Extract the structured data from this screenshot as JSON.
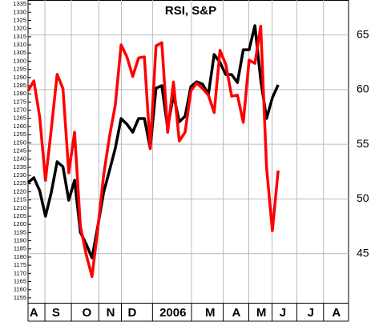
{
  "chart_data": {
    "type": "line",
    "title": "RSI, S&P",
    "x": [
      0,
      1,
      2,
      3,
      4,
      5,
      6,
      7,
      8,
      9,
      10,
      11,
      12,
      13,
      14,
      15,
      16,
      17,
      18,
      19,
      20,
      21,
      22,
      23,
      24,
      25,
      26,
      27,
      28,
      29,
      30,
      31,
      32,
      33,
      34,
      35,
      36,
      37,
      38,
      39,
      40,
      41,
      42,
      43
    ],
    "xlim": [
      0,
      55.1
    ],
    "xticks": [
      {
        "value": 1.0,
        "label": "A"
      },
      {
        "value": 4.8,
        "label": "S"
      },
      {
        "value": 10.1,
        "label": "O"
      },
      {
        "value": 14.2,
        "label": "N"
      },
      {
        "value": 17.9,
        "label": "D"
      },
      {
        "value": 24.9,
        "label": "2006"
      },
      {
        "value": 31.3,
        "label": "M"
      },
      {
        "value": 35.8,
        "label": "A"
      },
      {
        "value": 40.1,
        "label": "M"
      },
      {
        "value": 43.8,
        "label": "J"
      },
      {
        "value": 48.6,
        "label": "J"
      },
      {
        "value": 53.0,
        "label": "A"
      }
    ],
    "ylim": [
      1152,
      1337.5
    ],
    "yticks": [
      1155,
      1160,
      1165,
      1170,
      1175,
      1180,
      1185,
      1190,
      1195,
      1200,
      1205,
      1210,
      1215,
      1220,
      1225,
      1230,
      1235,
      1240,
      1245,
      1250,
      1255,
      1260,
      1265,
      1270,
      1275,
      1280,
      1285,
      1290,
      1295,
      1300,
      1305,
      1310,
      1315,
      1320,
      1325,
      1330,
      1335
    ],
    "y2lim": [
      40.5,
      68.2
    ],
    "y2ticks": [
      45,
      50,
      55,
      60,
      65
    ],
    "grid": true,
    "series": [
      {
        "name": "S&P",
        "color": "#000000",
        "values": [
          1225.6,
          1228.6,
          1220.7,
          1205.0,
          1219.7,
          1238.4,
          1235.4,
          1214.8,
          1227.1,
          1195.2,
          1187.9,
          1179.5,
          1199.1,
          1219.7,
          1233.0,
          1246.7,
          1264.9,
          1261.4,
          1256.5,
          1264.9,
          1264.9,
          1246.7,
          1283.5,
          1285.0,
          1259.0,
          1279.6,
          1262.9,
          1266.3,
          1284.5,
          1287.4,
          1286.0,
          1279.6,
          1304.1,
          1299.2,
          1291.8,
          1291.8,
          1286.9,
          1307.0,
          1307.0,
          1321.8,
          1288.4,
          1264.9,
          1277.6,
          1285.5
        ]
      },
      {
        "name": "RSI",
        "color": "#ff0000",
        "axis": "y2",
        "values": [
          59.9,
          60.8,
          57.5,
          51.7,
          56.4,
          61.4,
          60.1,
          52.4,
          56.1,
          47.5,
          44.9,
          42.9,
          47.3,
          52.2,
          55.7,
          58.6,
          64.1,
          63.0,
          61.2,
          62.9,
          63.0,
          54.6,
          64.0,
          64.3,
          56.1,
          60.7,
          55.3,
          56.1,
          59.9,
          60.6,
          60.1,
          59.5,
          57.9,
          63.6,
          62.3,
          59.4,
          59.5,
          57.0,
          62.7,
          62.4,
          65.8,
          52.9,
          47.1,
          52.6
        ]
      }
    ]
  }
}
